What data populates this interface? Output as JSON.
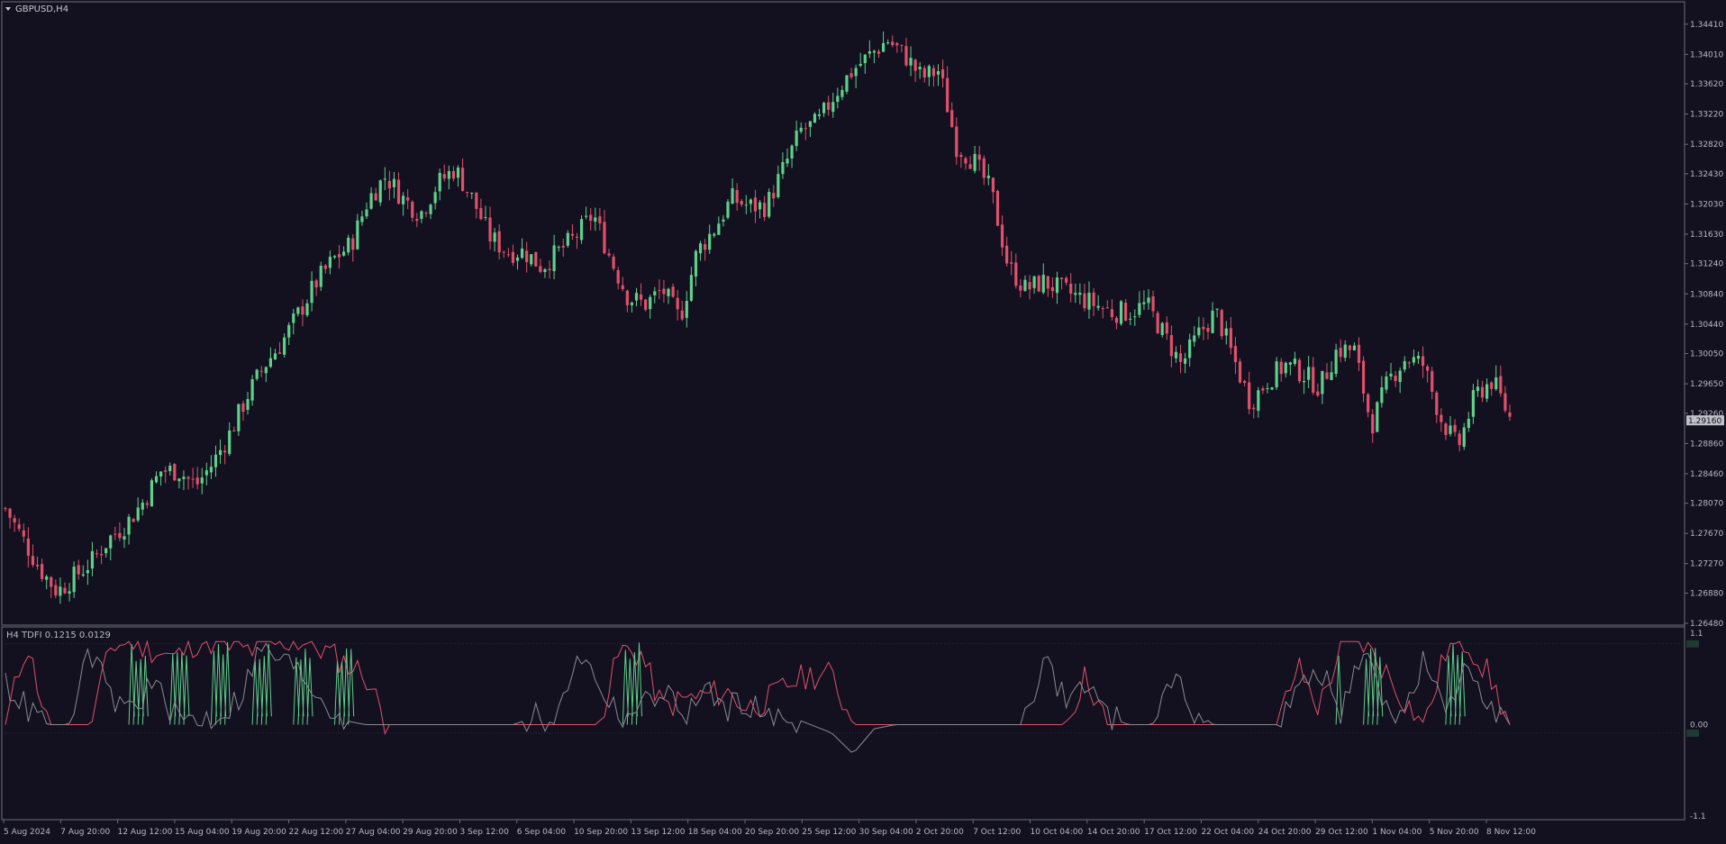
{
  "window": {
    "symbol_title": "GBPUSD,H4",
    "indicator_label": "H4 TDFI 0.1215 0.0129"
  },
  "colors": {
    "background": "#131120",
    "bull": "#5fd08a",
    "bear": "#e0506a",
    "text": "#b8b8c0",
    "frame": "#6e6e78",
    "indicator_grey": "#8a8a90"
  },
  "chart_data": [
    {
      "type": "candlestick",
      "title": "GBPUSD,H4",
      "ylim": [
        1.2648,
        1.3461
      ],
      "y_ticks": [
        "1.34410",
        "1.34010",
        "1.33620",
        "1.33220",
        "1.32820",
        "1.32430",
        "1.32030",
        "1.31630",
        "1.31240",
        "1.30840",
        "1.30440",
        "1.30050",
        "1.29650",
        "1.29260",
        "1.28860",
        "1.28460",
        "1.28070",
        "1.27670",
        "1.27270",
        "1.26880",
        "1.26480"
      ],
      "current_price": "1.29160",
      "x_ticks": [
        "5 Aug 2024",
        "7 Aug 20:00",
        "12 Aug 12:00",
        "15 Aug 04:00",
        "19 Aug 20:00",
        "22 Aug 12:00",
        "27 Aug 04:00",
        "29 Aug 20:00",
        "3 Sep 12:00",
        "6 Sep 04:00",
        "10 Sep 20:00",
        "13 Sep 12:00",
        "18 Sep 04:00",
        "20 Sep 20:00",
        "25 Sep 12:00",
        "30 Sep 04:00",
        "2 Oct 20:00",
        "7 Oct 12:00",
        "10 Oct 04:00",
        "14 Oct 20:00",
        "17 Oct 12:00",
        "22 Oct 04:00",
        "24 Oct 20:00",
        "29 Oct 12:00",
        "1 Nov 04:00",
        "5 Nov 20:00",
        "8 Nov 12:00"
      ],
      "close_path": [
        1.28,
        1.276,
        1.272,
        1.269,
        1.271,
        1.273,
        1.276,
        1.278,
        1.281,
        1.285,
        1.285,
        1.283,
        1.286,
        1.29,
        1.295,
        1.299,
        1.302,
        1.306,
        1.31,
        1.313,
        1.315,
        1.321,
        1.324,
        1.321,
        1.319,
        1.323,
        1.325,
        1.321,
        1.316,
        1.314,
        1.314,
        1.312,
        1.314,
        1.316,
        1.319,
        1.313,
        1.308,
        1.307,
        1.309,
        1.305,
        1.314,
        1.317,
        1.321,
        1.32,
        1.32,
        1.325,
        1.33,
        1.331,
        1.335,
        1.338,
        1.34,
        1.342,
        1.34,
        1.337,
        1.338,
        1.328,
        1.326,
        1.322,
        1.312,
        1.309,
        1.31,
        1.309,
        1.308,
        1.307,
        1.306,
        1.306,
        1.307,
        1.303,
        1.299,
        1.303,
        1.306,
        1.3,
        1.294,
        1.297,
        1.299,
        1.298,
        1.296,
        1.301,
        1.301,
        1.291,
        1.297,
        1.3,
        1.299,
        1.292,
        1.288,
        1.295,
        1.297,
        1.292
      ]
    },
    {
      "type": "line",
      "title": "H4 TDFI 0.1215 0.0129",
      "ylim": [
        -1.1,
        1.1
      ],
      "y_ticks": [
        "1.1",
        "0.00",
        "-1.1"
      ],
      "levels": [
        0.1215,
        -0.0129
      ],
      "series": [
        {
          "color": "#e0506a",
          "values": [
            0.0,
            1.0,
            0.0,
            0.0,
            0.0,
            0.95,
            1.0,
            0.9,
            0.8,
            1.0,
            1.0,
            0.9,
            0.9,
            1.0,
            1.0,
            0.9,
            0.75,
            0.6,
            0.0,
            0.0,
            0.0,
            0.0,
            0.0,
            0.0,
            0.0,
            0.0,
            0.0,
            0.0,
            0.0,
            0.9,
            0.85,
            0.2,
            0.3,
            0.35,
            0.4,
            0.2,
            0.3,
            0.5,
            0.6,
            0.6,
            0.0,
            0.0,
            0.0,
            0.0,
            0.0,
            0.0,
            0.0,
            0.0,
            0.0,
            0.0,
            0.0,
            0.6,
            0.0,
            0.0,
            0.0,
            0.0,
            0.0,
            0.0,
            0.0,
            0.0,
            0.0,
            0.7,
            0.2,
            0.9,
            1.0,
            0.7,
            0.3,
            0.0,
            0.9,
            1.0,
            0.6,
            0.0
          ]
        },
        {
          "color": "#8a8a90",
          "values": [
            0.5,
            0.2,
            0.0,
            0.0,
            0.9,
            0.3,
            0.2,
            0.5,
            0.1,
            0.05,
            0.1,
            0.3,
            0.9,
            0.8,
            0.6,
            0.3,
            0.05,
            0.0,
            0.0,
            0.0,
            0.0,
            0.0,
            0.0,
            0.0,
            0.0,
            0.1,
            0.0,
            0.9,
            0.5,
            0.1,
            0.2,
            0.45,
            0.1,
            0.4,
            0.2,
            0.3,
            0.05,
            0.1,
            0.0,
            -0.1,
            -0.35,
            -0.05,
            0.0,
            0.0,
            0.0,
            0.0,
            0.0,
            0.0,
            0.0,
            0.8,
            0.3,
            0.5,
            0.1,
            0.0,
            0.0,
            0.6,
            0.2,
            0.0,
            0.0,
            0.0,
            0.0,
            0.4,
            0.7,
            0.1,
            0.9,
            0.3,
            0.1,
            0.8,
            0.05,
            0.8,
            0.3,
            0.0
          ]
        }
      ]
    }
  ]
}
